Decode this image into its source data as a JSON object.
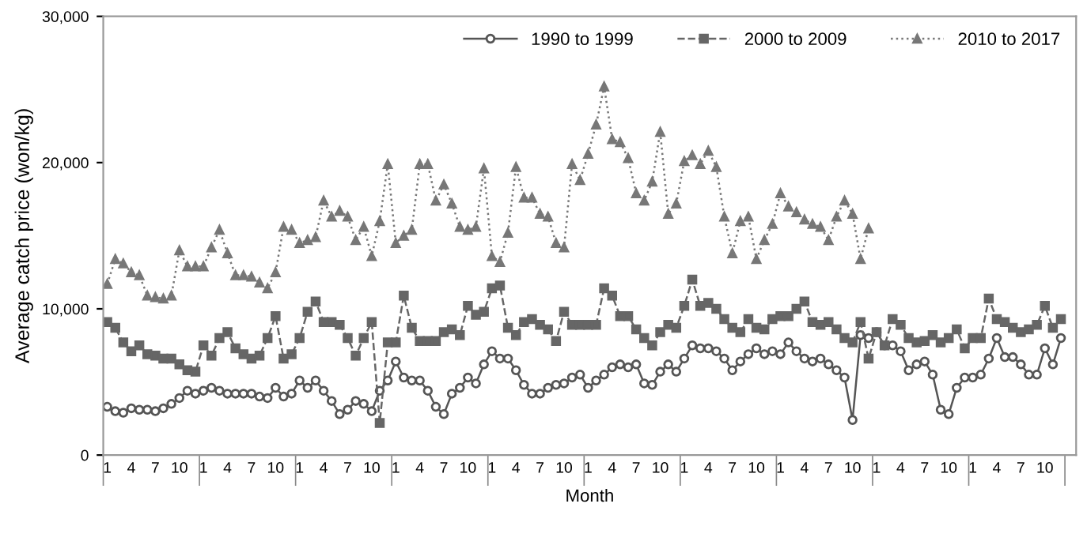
{
  "chart_data": {
    "type": "line",
    "xlabel": "Month",
    "ylabel": "Average catch price (won/kg)",
    "categories": [
      "1",
      null,
      null,
      "4",
      null,
      null,
      "7",
      null,
      null,
      "10",
      null,
      null,
      "1",
      null,
      null,
      "4",
      null,
      null,
      "7",
      null,
      null,
      "10",
      null,
      null,
      "1",
      null,
      null,
      "4",
      null,
      null,
      "7",
      null,
      null,
      "10",
      null,
      null,
      "1",
      null,
      null,
      "4",
      null,
      null,
      "7",
      null,
      null,
      "10",
      null,
      null,
      "1",
      null,
      null,
      "4",
      null,
      null,
      "7",
      null,
      null,
      "10",
      null,
      null,
      "1",
      null,
      null,
      "4",
      null,
      null,
      "7",
      null,
      null,
      "10",
      null,
      null,
      "1",
      null,
      null,
      "4",
      null,
      null,
      "7",
      null,
      null,
      "10",
      null,
      null,
      "1",
      null,
      null,
      "4",
      null,
      null,
      "7",
      null,
      null,
      "10",
      null,
      null,
      "1",
      null,
      null,
      "4",
      null,
      null,
      "7",
      null,
      null,
      "10",
      null,
      null,
      "1",
      null,
      null,
      "4",
      null,
      null,
      "7",
      null,
      null,
      "10",
      null,
      null
    ],
    "series": [
      {
        "name": "1990 to 1999",
        "color": "#555555",
        "marker": "circle",
        "line_style": "solid",
        "values": [
          3300,
          3000,
          2900,
          3200,
          3100,
          3100,
          3000,
          3200,
          3500,
          3900,
          4400,
          4200,
          4400,
          4600,
          4400,
          4200,
          4200,
          4200,
          4200,
          4000,
          3900,
          4600,
          4000,
          4200,
          5100,
          4600,
          5100,
          4400,
          3700,
          2800,
          3100,
          3700,
          3500,
          3000,
          4400,
          5100,
          6400,
          5300,
          5100,
          5100,
          4400,
          3300,
          2800,
          4200,
          4600,
          5300,
          4900,
          6200,
          7100,
          6600,
          6600,
          5800,
          4800,
          4200,
          4200,
          4600,
          4800,
          4900,
          5300,
          5500,
          4600,
          5100,
          5500,
          6000,
          6200,
          6000,
          6200,
          4900,
          4800,
          5700,
          6200,
          5700,
          6600,
          7500,
          7300,
          7300,
          7100,
          6600,
          5800,
          6400,
          6900,
          7300,
          6900,
          7100,
          6900,
          7700,
          7100,
          6600,
          6400,
          6600,
          6200,
          5800,
          5300,
          2400,
          8200,
          8000,
          8400,
          7500,
          7500,
          7100,
          5800,
          6200,
          6400,
          5500,
          3100,
          2800,
          4600,
          5300,
          5300,
          5500,
          6600,
          8000,
          6700,
          6700,
          6200,
          5500,
          5500,
          7300,
          6200,
          8000
        ]
      },
      {
        "name": "2000 to 2009",
        "color": "#666666",
        "marker": "square",
        "line_style": "dashed",
        "values": [
          9100,
          8700,
          7700,
          7100,
          7500,
          6900,
          6800,
          6600,
          6600,
          6200,
          5800,
          5700,
          7500,
          6800,
          8000,
          8400,
          7300,
          6900,
          6600,
          6800,
          8000,
          9500,
          6600,
          6900,
          8000,
          9800,
          10500,
          9100,
          9100,
          8900,
          8000,
          6800,
          8000,
          9100,
          2200,
          7700,
          7700,
          10900,
          8700,
          7800,
          7800,
          7800,
          8400,
          8600,
          8200,
          10200,
          9600,
          9800,
          11400,
          11600,
          8700,
          8200,
          9100,
          9300,
          8900,
          8600,
          7800,
          9800,
          8900,
          8900,
          8900,
          8900,
          11400,
          10900,
          9500,
          9500,
          8600,
          8000,
          7500,
          8400,
          8900,
          8700,
          10200,
          12000,
          10200,
          10400,
          10000,
          9300,
          8700,
          8400,
          9300,
          8700,
          8600,
          9300,
          9500,
          9500,
          10000,
          10500,
          9100,
          8900,
          9100,
          8600,
          8000,
          7700,
          9100,
          6600,
          8400,
          7500,
          9300,
          8900,
          8000,
          7700,
          7800,
          8200,
          7700,
          8000,
          8600,
          7300,
          8000,
          8000,
          10700,
          9300,
          9100,
          8700,
          8400,
          8600,
          8900,
          10200,
          8700,
          9300
        ]
      },
      {
        "name": "2010 to 2017",
        "color": "#777777",
        "marker": "triangle",
        "line_style": "dotted",
        "values": [
          11700,
          13400,
          13100,
          12500,
          12300,
          10900,
          10800,
          10700,
          10900,
          14000,
          12900,
          12900,
          12900,
          14200,
          15400,
          13800,
          12300,
          12300,
          12200,
          11800,
          11400,
          12500,
          15600,
          15400,
          14500,
          14700,
          14900,
          17400,
          16300,
          16700,
          16300,
          14700,
          15600,
          13600,
          16000,
          19900,
          14500,
          15000,
          15400,
          19900,
          19900,
          17400,
          18500,
          17200,
          15600,
          15400,
          15600,
          19600,
          13600,
          13200,
          15200,
          19700,
          17600,
          17600,
          16500,
          16300,
          14500,
          14200,
          19900,
          18800,
          20600,
          22600,
          25200,
          21600,
          21400,
          20300,
          17900,
          17400,
          18700,
          22100,
          16500,
          17200,
          20100,
          20500,
          19900,
          20800,
          19700,
          16300,
          13800,
          16000,
          16300,
          13400,
          14700,
          15800,
          17900,
          17000,
          16600,
          16100,
          15800,
          15600,
          14700,
          16300,
          17400,
          16500,
          13400,
          15500,
          null,
          null,
          null,
          null,
          null,
          null,
          null,
          null,
          null,
          null,
          null,
          null,
          null,
          null,
          null,
          null,
          null,
          null,
          null,
          null,
          null,
          null,
          null,
          null
        ]
      }
    ],
    "ylim": [
      0,
      30000
    ],
    "yticks": [
      0,
      {
        "value": 10000,
        "label": "10,000"
      },
      {
        "value": 20000,
        "label": "20,000"
      },
      {
        "value": 30000,
        "label": "30,000"
      }
    ],
    "legend": "top"
  }
}
